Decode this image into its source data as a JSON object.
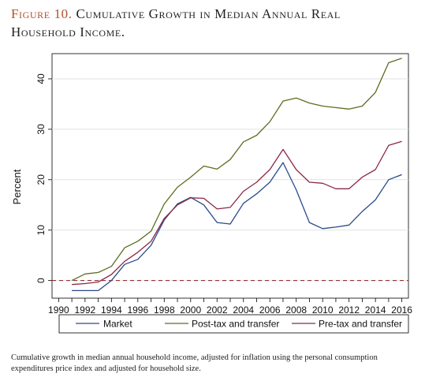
{
  "figure": {
    "number_label": "Figure 10.",
    "title": "Cumulative Growth in Median Annual Real Household Income.",
    "caption": "Cumulative growth in median annual household income, adjusted for inflation using the personal consumption expenditures price index and adjusted for household size."
  },
  "chart_data": {
    "type": "line",
    "title": "",
    "xlabel": "",
    "ylabel": "Percent",
    "xlim": [
      1989.5,
      2016.5
    ],
    "ylim": [
      -3.5,
      45
    ],
    "x_ticks": [
      1990,
      1992,
      1994,
      1996,
      1998,
      2000,
      2002,
      2004,
      2006,
      2008,
      2010,
      2012,
      2014,
      2016
    ],
    "y_ticks": [
      0,
      10,
      20,
      30,
      40
    ],
    "grid": true,
    "reference_line": {
      "y": 0,
      "style": "dashed",
      "color": "#8b1a1a"
    },
    "legend_position": "bottom",
    "x": [
      1991,
      1992,
      1993,
      1994,
      1995,
      1996,
      1997,
      1998,
      1999,
      2000,
      2001,
      2002,
      2003,
      2004,
      2005,
      2006,
      2007,
      2008,
      2009,
      2010,
      2011,
      2012,
      2013,
      2014,
      2015,
      2016
    ],
    "series": [
      {
        "name": "Market",
        "color": "#2a4a8a",
        "values": [
          -2,
          -2,
          -2,
          0,
          3.2,
          4.2,
          7,
          12,
          15.2,
          16.5,
          15,
          11.5,
          11.2,
          15.3,
          17.2,
          19.5,
          23.4,
          18,
          11.5,
          10.3,
          10.6,
          11,
          13.7,
          16,
          20,
          21
        ]
      },
      {
        "name": "Post-tax and transfer",
        "color": "#5a6e1f",
        "values": [
          0,
          1.3,
          1.6,
          2.8,
          6.5,
          7.8,
          9.8,
          15.2,
          18.5,
          20.5,
          22.7,
          22.1,
          24,
          27.5,
          28.8,
          31.5,
          35.6,
          36.2,
          35.2,
          34.6,
          34.3,
          34,
          34.6,
          37.3,
          43.2,
          44.1
        ]
      },
      {
        "name": "Pre-tax and transfer",
        "color": "#8a2a44",
        "values": [
          -0.8,
          -0.6,
          -0.3,
          1.2,
          3.8,
          5.6,
          7.8,
          12.3,
          15,
          16.4,
          16.3,
          14.2,
          14.5,
          17.7,
          19.5,
          22,
          26,
          22,
          19.5,
          19.3,
          18.2,
          18.2,
          20.5,
          22,
          26.8,
          27.6
        ]
      }
    ]
  }
}
